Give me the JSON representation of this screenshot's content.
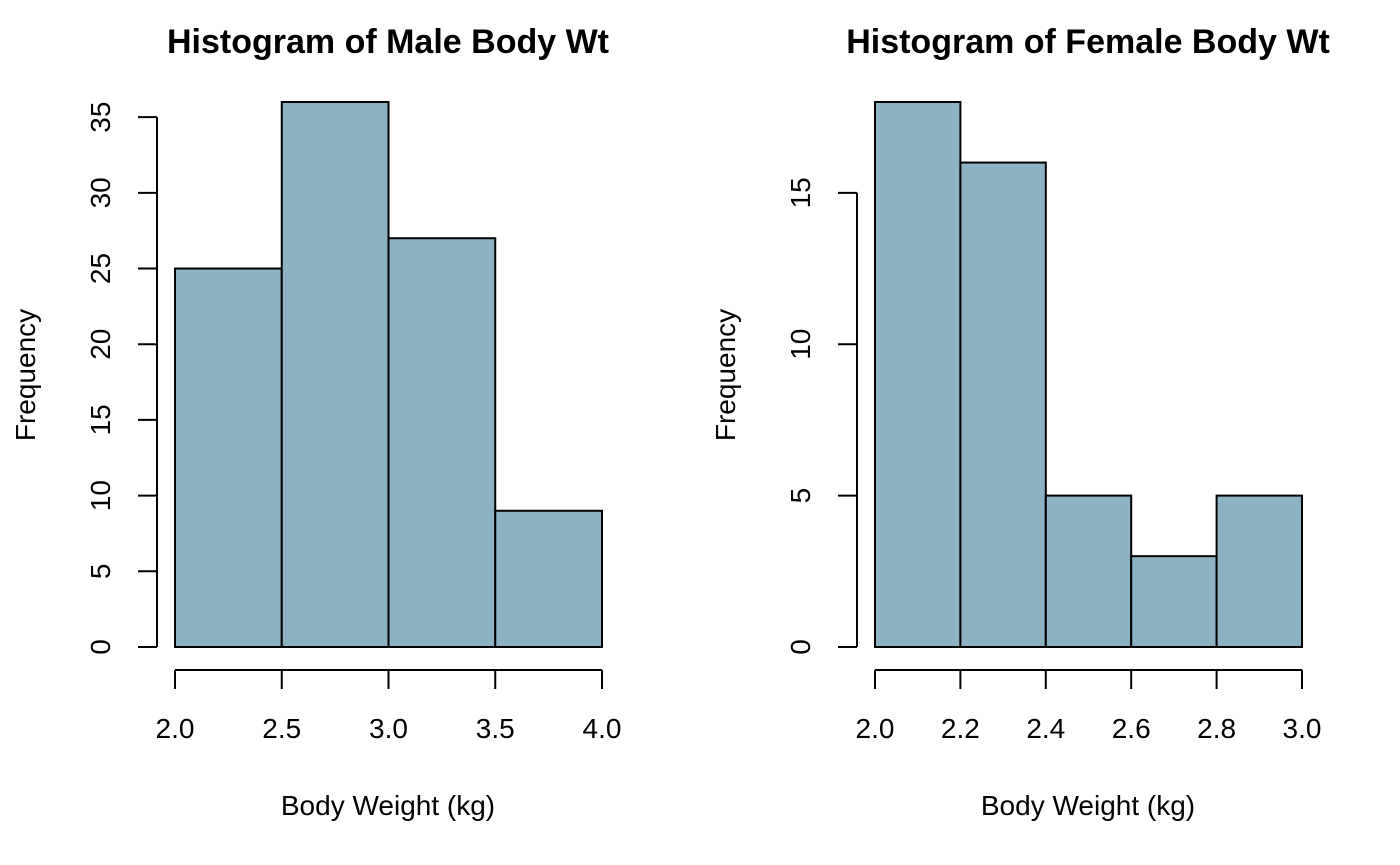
{
  "chart_data": [
    {
      "type": "bar",
      "subtype": "histogram",
      "title": "Histogram of Male Body Wt",
      "xlabel": "Body Weight (kg)",
      "ylabel": "Frequency",
      "bins": [
        [
          2.0,
          2.5
        ],
        [
          2.5,
          3.0
        ],
        [
          3.0,
          3.5
        ],
        [
          3.5,
          4.0
        ]
      ],
      "values": [
        25,
        36,
        27,
        9
      ],
      "xlim": [
        2.0,
        4.0
      ],
      "ylim": [
        0,
        36
      ],
      "xticks": [
        2.0,
        2.5,
        3.0,
        3.5,
        4.0
      ],
      "xtick_labels": [
        "2.0",
        "2.5",
        "3.0",
        "3.5",
        "4.0"
      ],
      "yticks": [
        0,
        5,
        10,
        15,
        20,
        25,
        30,
        35
      ],
      "ytick_labels": [
        "0",
        "5",
        "10",
        "15",
        "20",
        "25",
        "30",
        "35"
      ],
      "grid": false,
      "bar_color": "#8bb3c4",
      "edge_color": "#000000"
    },
    {
      "type": "bar",
      "subtype": "histogram",
      "title": "Histogram of Female Body Wt",
      "xlabel": "Body Weight (kg)",
      "ylabel": "Frequency",
      "bins": [
        [
          2.0,
          2.2
        ],
        [
          2.2,
          2.4
        ],
        [
          2.4,
          2.6
        ],
        [
          2.6,
          2.8
        ],
        [
          2.8,
          3.0
        ]
      ],
      "values": [
        18,
        16,
        5,
        3,
        5
      ],
      "xlim": [
        2.0,
        3.0
      ],
      "ylim": [
        0,
        18
      ],
      "xticks": [
        2.0,
        2.2,
        2.4,
        2.6,
        2.8,
        3.0
      ],
      "xtick_labels": [
        "2.0",
        "2.2",
        "2.4",
        "2.6",
        "2.8",
        "3.0"
      ],
      "yticks": [
        0,
        5,
        10,
        15
      ],
      "ytick_labels": [
        "0",
        "5",
        "10",
        "15"
      ],
      "grid": false,
      "bar_color": "#8bb3c4",
      "edge_color": "#000000"
    }
  ]
}
